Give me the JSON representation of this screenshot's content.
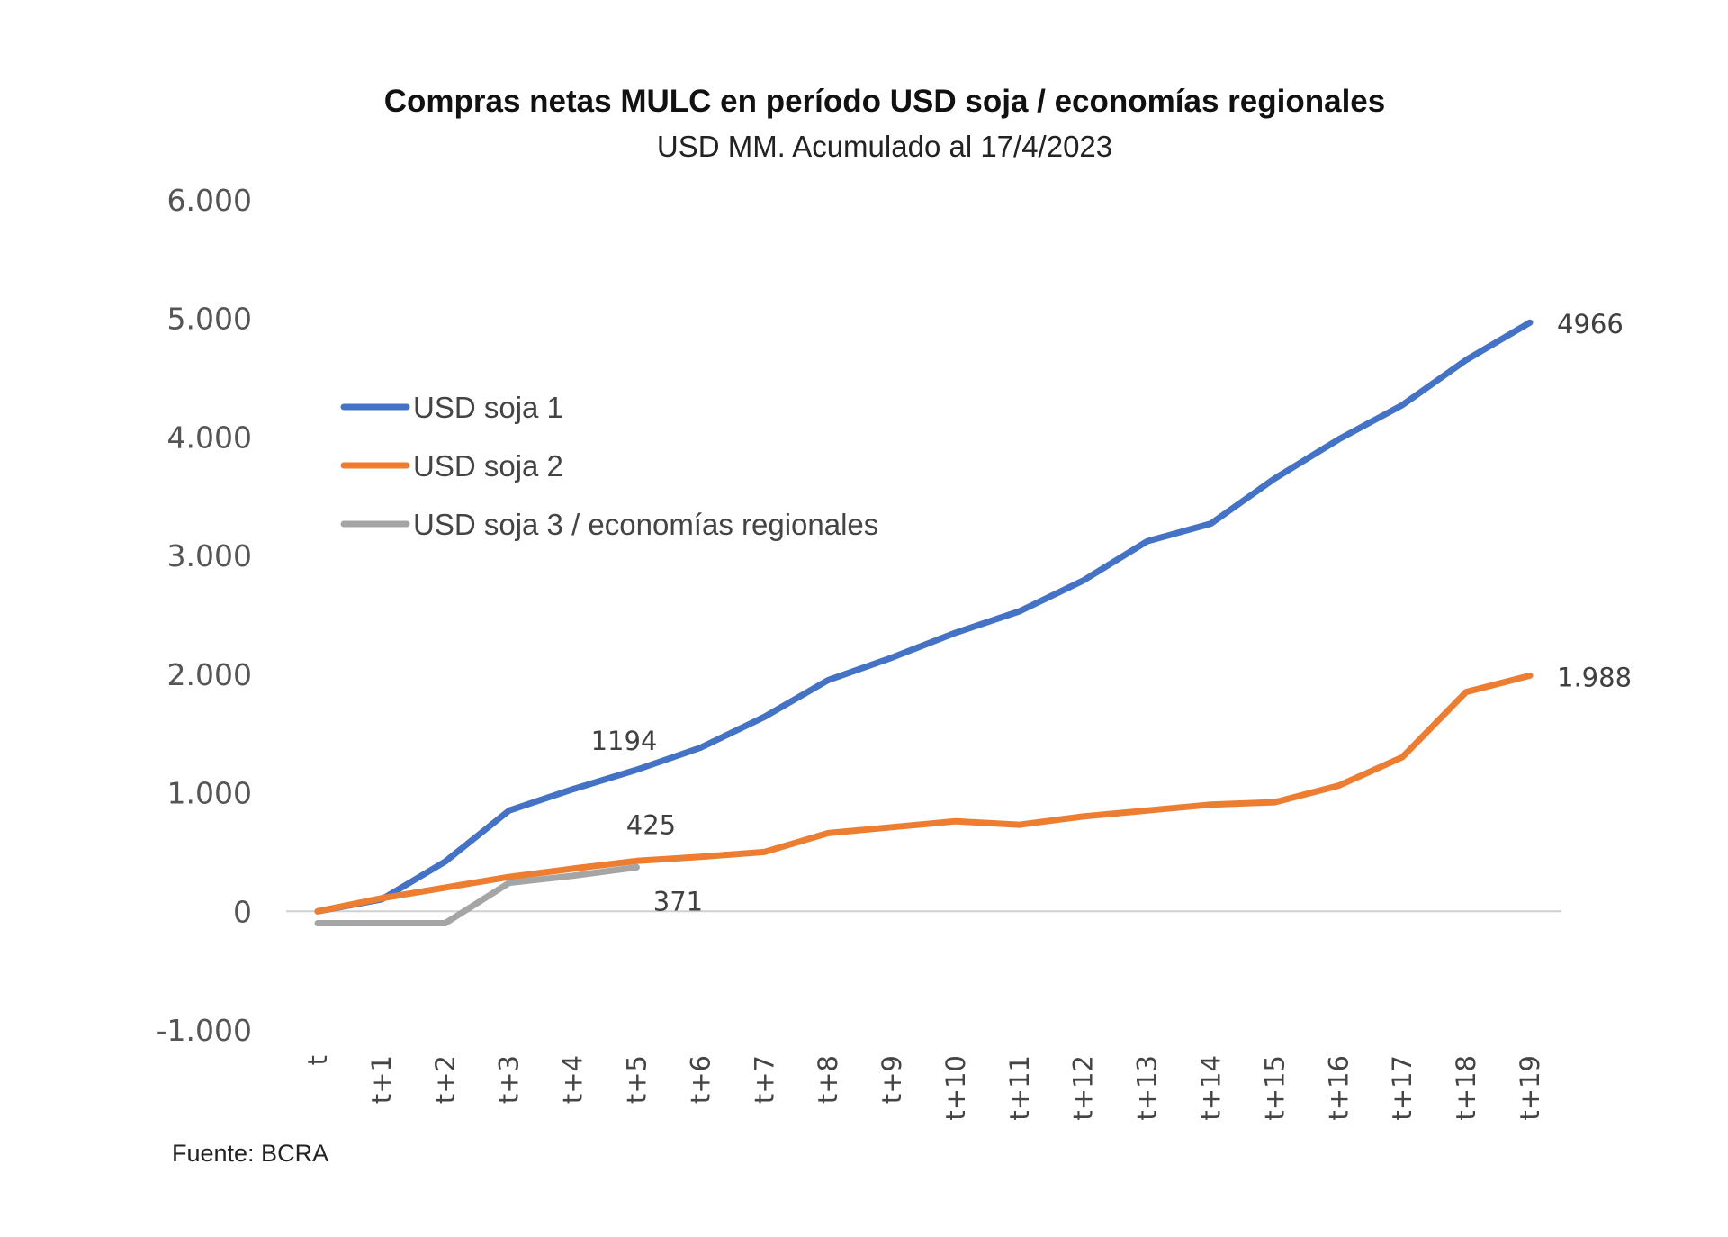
{
  "chart_data": {
    "type": "line",
    "title": "Compras netas MULC en período USD soja / economías regionales",
    "subtitle": "USD MM. Acumulado al 17/4/2023",
    "xlabel": "",
    "ylabel": "",
    "categories": [
      "t",
      "t+1",
      "t+2",
      "t+3",
      "t+4",
      "t+5",
      "t+6",
      "t+7",
      "t+8",
      "t+9",
      "t+10",
      "t+11",
      "t+12",
      "t+13",
      "t+14",
      "t+15",
      "t+16",
      "t+17",
      "t+18",
      "t+19"
    ],
    "ylim": [
      -1000,
      6000
    ],
    "yticks": [
      6000,
      5000,
      4000,
      3000,
      2000,
      1000,
      0,
      -1000
    ],
    "ytick_labels": [
      "6.000",
      "5.000",
      "4.000",
      "3.000",
      "2.000",
      "1.000",
      "0",
      "-1.000"
    ],
    "grid": false,
    "zero_line": true,
    "legend_position": "upper-left",
    "series": [
      {
        "name": "USD soja 1",
        "color": "#4472C4",
        "values": [
          0,
          100,
          420,
          850,
          1030,
          1194,
          1380,
          1640,
          1950,
          2140,
          2350,
          2530,
          2790,
          3120,
          3270,
          3650,
          3980,
          4270,
          4650,
          4966
        ]
      },
      {
        "name": "USD soja 2",
        "color": "#ED7D31",
        "values": [
          0,
          110,
          200,
          290,
          360,
          425,
          460,
          500,
          660,
          710,
          760,
          730,
          800,
          850,
          900,
          920,
          1060,
          1300,
          1850,
          1988
        ]
      },
      {
        "name": "USD soja 3 / economías regionales",
        "color": "#A5A5A5",
        "values": [
          -100,
          -100,
          -100,
          240,
          300,
          371
        ]
      }
    ],
    "annotations": [
      {
        "series": 0,
        "index": 5,
        "text": "1194",
        "position": "above"
      },
      {
        "series": 1,
        "index": 5,
        "text": "425",
        "position": "above"
      },
      {
        "series": 2,
        "index": 5,
        "text": "371",
        "position": "below-right"
      },
      {
        "series": 0,
        "index": 19,
        "text": "4966",
        "position": "right"
      },
      {
        "series": 1,
        "index": 19,
        "text": "1.988",
        "position": "right"
      }
    ],
    "source": "Fuente: BCRA"
  }
}
